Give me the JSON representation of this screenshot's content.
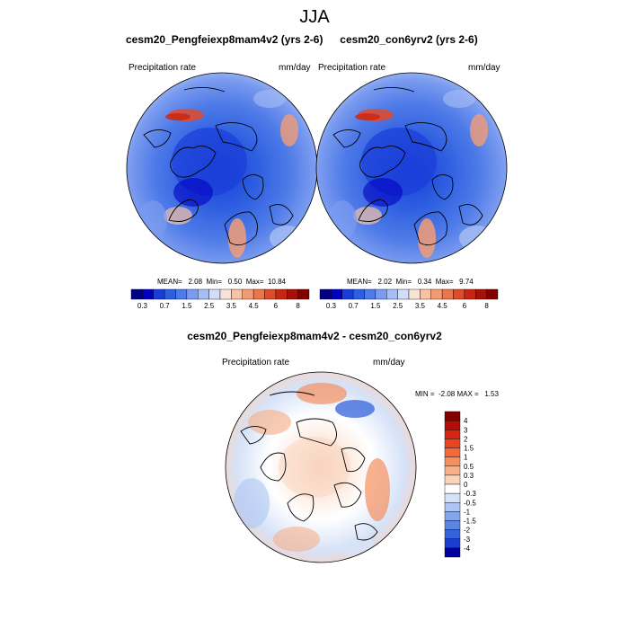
{
  "season_title": "JJA",
  "panels": [
    {
      "title": "cesm20_Pengfeiexp8mam4v2 (yrs 2-6)",
      "variable": "Precipitation rate",
      "units": "mm/day",
      "stats": "MEAN=   2.08  Min=   0.50  Max=  10.84"
    },
    {
      "title": "cesm20_con6yrv2 (yrs 2-6)",
      "variable": "Precipitation rate",
      "units": "mm/day",
      "stats": "MEAN=   2.02  Min=   0.34  Max=   9.74"
    }
  ],
  "abs_colorbar": {
    "tick_labels": [
      "0.3",
      "0.7",
      "1.5",
      "2.5",
      "3.5",
      "4.5",
      "6",
      "8"
    ],
    "colors": [
      "#000080",
      "#0000c0",
      "#1a3dd9",
      "#2e5fe0",
      "#4f7be8",
      "#7a9bef",
      "#a6bef5",
      "#d2ddf9",
      "#f7e3d8",
      "#f7c2a5",
      "#f29c76",
      "#ed744b",
      "#e24a2a",
      "#c82612",
      "#a61008",
      "#800000"
    ]
  },
  "diff_panel": {
    "title": "cesm20_Pengfeiexp8mam4v2 - cesm20_con6yrv2",
    "variable": "Precipitation rate",
    "units": "mm/day",
    "stats": "MIN =  -2.08 MAX =   1.53"
  },
  "diff_colorbar": {
    "tick_labels": [
      "4",
      "3",
      "2",
      "1.5",
      "1",
      "0.5",
      "0.3",
      "0",
      "-0.3",
      "-0.5",
      "-1",
      "-1.5",
      "-2",
      "-3",
      "-4"
    ],
    "colors": [
      "#800000",
      "#b00e06",
      "#d62512",
      "#e84620",
      "#f26a3c",
      "#f5905f",
      "#f7b08a",
      "#fad3bd",
      "#ffffff",
      "#d6e2f8",
      "#aec4f2",
      "#85a5ec",
      "#5c85e4",
      "#3563dc",
      "#1a3fcf",
      "#0000a0"
    ]
  }
}
